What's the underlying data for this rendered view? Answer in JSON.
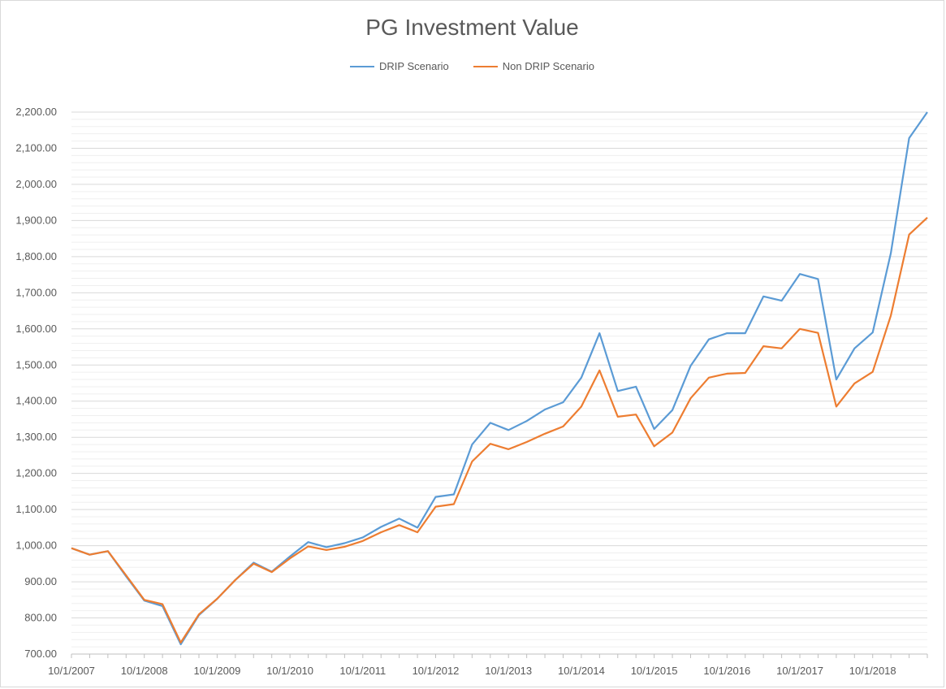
{
  "chart_data": {
    "type": "line",
    "title": "PG Investment Value",
    "xlabel": "",
    "ylabel": "",
    "ylim": [
      700,
      2200
    ],
    "y_ticks": [
      700,
      800,
      900,
      1000,
      1100,
      1200,
      1300,
      1400,
      1500,
      1600,
      1700,
      1800,
      1900,
      2000,
      2100,
      2200
    ],
    "y_tick_labels": [
      "700.00",
      "800.00",
      "900.00",
      "1,000.00",
      "1,100.00",
      "1,200.00",
      "1,300.00",
      "1,400.00",
      "1,500.00",
      "1,600.00",
      "1,700.00",
      "1,800.00",
      "1,900.00",
      "2,000.00",
      "2,100.00",
      "2,200.00"
    ],
    "x_tick_labels": [
      "10/1/2007",
      "10/1/2008",
      "10/1/2009",
      "10/1/2010",
      "10/1/2011",
      "10/1/2012",
      "10/1/2013",
      "10/1/2014",
      "10/1/2015",
      "10/1/2016",
      "10/1/2017",
      "10/1/2018"
    ],
    "grid": true,
    "legend_position": "top",
    "x": [
      "10/1/2007",
      "1/1/2008",
      "4/1/2008",
      "7/1/2008",
      "10/1/2008",
      "1/1/2009",
      "4/1/2009",
      "7/1/2009",
      "10/1/2009",
      "1/1/2010",
      "4/1/2010",
      "7/1/2010",
      "10/1/2010",
      "1/1/2011",
      "4/1/2011",
      "7/1/2011",
      "10/1/2011",
      "1/1/2012",
      "4/1/2012",
      "7/1/2012",
      "10/1/2012",
      "1/1/2013",
      "4/1/2013",
      "7/1/2013",
      "10/1/2013",
      "1/1/2014",
      "4/1/2014",
      "7/1/2014",
      "10/1/2014",
      "1/1/2015",
      "4/1/2015",
      "7/1/2015",
      "10/1/2015",
      "1/1/2016",
      "4/1/2016",
      "7/1/2016",
      "10/1/2016",
      "1/1/2017",
      "4/1/2017",
      "7/1/2017",
      "10/1/2017",
      "1/1/2018",
      "4/1/2018",
      "7/1/2018",
      "10/1/2018",
      "1/1/2019",
      "4/1/2019",
      "7/1/2019"
    ],
    "series": [
      {
        "name": "DRIP Scenario",
        "color": "#5b9bd5",
        "values": [
          993,
          975,
          985,
          915,
          848,
          833,
          727,
          808,
          853,
          905,
          953,
          928,
          970,
          1010,
          996,
          1007,
          1023,
          1052,
          1075,
          1050,
          1135,
          1142,
          1280,
          1340,
          1320,
          1345,
          1377,
          1397,
          1465,
          1588,
          1428,
          1440,
          1323,
          1375,
          1498,
          1571,
          1588,
          1588,
          1690,
          1678,
          1752,
          1738,
          1460,
          1546,
          1590,
          1810,
          2128,
          2200
        ]
      },
      {
        "name": "Non DRIP Scenario",
        "color": "#ed7d31",
        "values": [
          993,
          975,
          985,
          918,
          850,
          838,
          732,
          810,
          853,
          905,
          950,
          927,
          965,
          998,
          988,
          997,
          1013,
          1037,
          1057,
          1037,
          1108,
          1115,
          1233,
          1282,
          1267,
          1287,
          1310,
          1330,
          1385,
          1485,
          1357,
          1363,
          1275,
          1313,
          1408,
          1465,
          1476,
          1478,
          1552,
          1546,
          1600,
          1589,
          1385,
          1449,
          1481,
          1637,
          1861,
          1908
        ]
      }
    ]
  }
}
